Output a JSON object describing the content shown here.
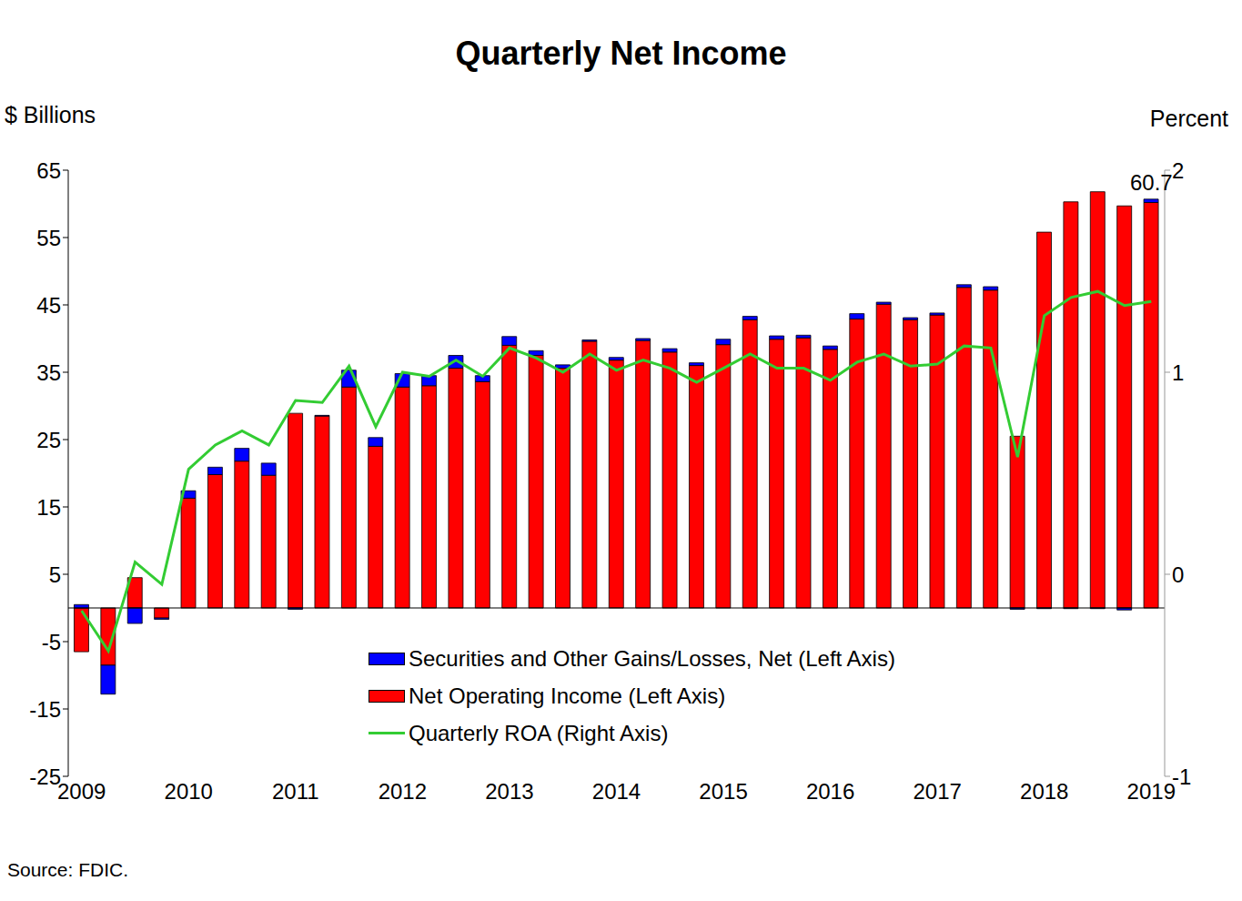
{
  "chart_data": {
    "type": "bar",
    "title": "Quarterly Net Income",
    "y_label": "$ Billions",
    "y2_label": "Percent",
    "source": "Source:  FDIC.",
    "stacked": true,
    "categories": [
      "2009",
      null,
      null,
      null,
      "2010",
      null,
      null,
      null,
      "2011",
      null,
      null,
      null,
      "2012",
      null,
      null,
      null,
      "2013",
      null,
      null,
      null,
      "2014",
      null,
      null,
      null,
      "2015",
      null,
      null,
      null,
      "2016",
      null,
      null,
      null,
      "2017",
      null,
      null,
      null,
      "2018",
      null,
      null,
      null,
      "2019"
    ],
    "series": [
      {
        "name": "Securities and Other Gains/Losses, Net  (Left Axis)",
        "type": "bar",
        "color": "#0000ff",
        "values": [
          0.5,
          -4.3,
          -2.3,
          -0.2,
          1.1,
          1.1,
          1.9,
          1.8,
          -0.2,
          0.1,
          2.5,
          1.3,
          2.0,
          1.5,
          1.9,
          0.9,
          1.3,
          0.7,
          0.5,
          0.2,
          0.4,
          0.3,
          0.5,
          0.4,
          0.8,
          0.5,
          0.5,
          0.4,
          0.5,
          0.8,
          0.3,
          0.3,
          0.3,
          0.4,
          0.5,
          -0.2,
          -0.1,
          -0.1,
          -0.1,
          -0.3,
          0.5
        ]
      },
      {
        "name": "Net Operating Income (Left Axis)",
        "type": "bar",
        "color": "#ff0000",
        "values": [
          -6.5,
          -8.5,
          4.5,
          -1.5,
          16.3,
          19.8,
          21.8,
          19.7,
          28.9,
          28.5,
          32.8,
          24.0,
          32.8,
          33.0,
          35.6,
          33.6,
          39.0,
          37.5,
          35.6,
          39.6,
          36.8,
          39.7,
          38.0,
          36.0,
          39.1,
          42.8,
          39.9,
          40.1,
          38.4,
          42.9,
          45.1,
          42.8,
          43.5,
          47.6,
          47.2,
          25.5,
          55.8,
          60.3,
          61.8,
          59.7,
          60.2
        ]
      },
      {
        "name": "Quarterly ROA (Right Axis)",
        "type": "line",
        "axis": "y2",
        "color": "#33cc33",
        "values": [
          -0.18,
          -0.38,
          0.06,
          -0.05,
          0.52,
          0.64,
          0.71,
          0.64,
          0.86,
          0.85,
          1.03,
          0.73,
          1.0,
          0.98,
          1.06,
          0.98,
          1.12,
          1.07,
          1.0,
          1.09,
          1.01,
          1.06,
          1.02,
          0.95,
          1.02,
          1.09,
          1.02,
          1.02,
          0.96,
          1.05,
          1.09,
          1.03,
          1.04,
          1.13,
          1.12,
          0.58,
          1.28,
          1.37,
          1.4,
          1.33,
          1.35
        ]
      }
    ],
    "ylim": [
      -25,
      65
    ],
    "yticks": [
      -25,
      -15,
      -5,
      5,
      15,
      25,
      35,
      45,
      55,
      65
    ],
    "y2lim": [
      -1,
      2
    ],
    "y2ticks": [
      -1,
      0,
      1,
      2
    ],
    "annotations": [
      {
        "text": "60.7",
        "x": 40,
        "y": 60.7
      }
    ]
  }
}
